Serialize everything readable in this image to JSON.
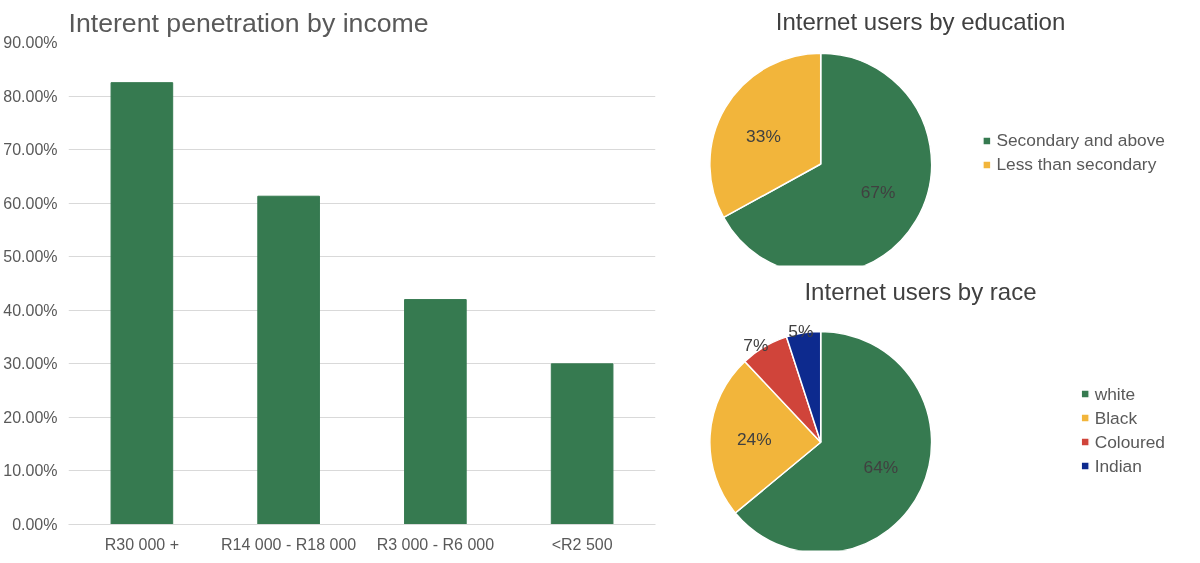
{
  "chart_data": [
    {
      "type": "bar",
      "title": "Interent penetration by income",
      "categories": [
        "R30 000 +",
        "R14 000 - R18 000",
        "R3 000 - R6 000",
        "<R2 500"
      ],
      "values": [
        82.5,
        61.3,
        42.0,
        30.0
      ],
      "color": "#367a50",
      "ylim": [
        0,
        90
      ],
      "yticks": [
        {
          "value": 0,
          "label": "0.00%"
        },
        {
          "value": 10,
          "label": "10.00%"
        },
        {
          "value": 20,
          "label": "20.00%"
        },
        {
          "value": 30,
          "label": "30.00%"
        },
        {
          "value": 40,
          "label": "40.00%"
        },
        {
          "value": 50,
          "label": "50.00%"
        },
        {
          "value": 60,
          "label": "60.00%"
        },
        {
          "value": 70,
          "label": "70.00%"
        },
        {
          "value": 80,
          "label": "80.00%"
        },
        {
          "value": 90,
          "label": "90.00%"
        }
      ],
      "grid": "y"
    },
    {
      "type": "pie",
      "title": "Internet users by education",
      "categories": [
        "Secondary and above",
        "Less than secondary"
      ],
      "values": [
        67,
        33
      ],
      "colors": [
        "#367a50",
        "#f2b53b"
      ],
      "value_labels": [
        "67%",
        "33%"
      ],
      "legend": "right"
    },
    {
      "type": "pie",
      "title": "Internet users by race",
      "categories": [
        "white",
        "Black",
        "Coloured",
        "Indian"
      ],
      "values": [
        64,
        24,
        7,
        5
      ],
      "colors": [
        "#367a50",
        "#f2b53b",
        "#d0443a",
        "#0d2a8e"
      ],
      "value_labels": [
        "64%",
        "24%",
        "7%",
        "5%"
      ],
      "legend": "right"
    }
  ]
}
